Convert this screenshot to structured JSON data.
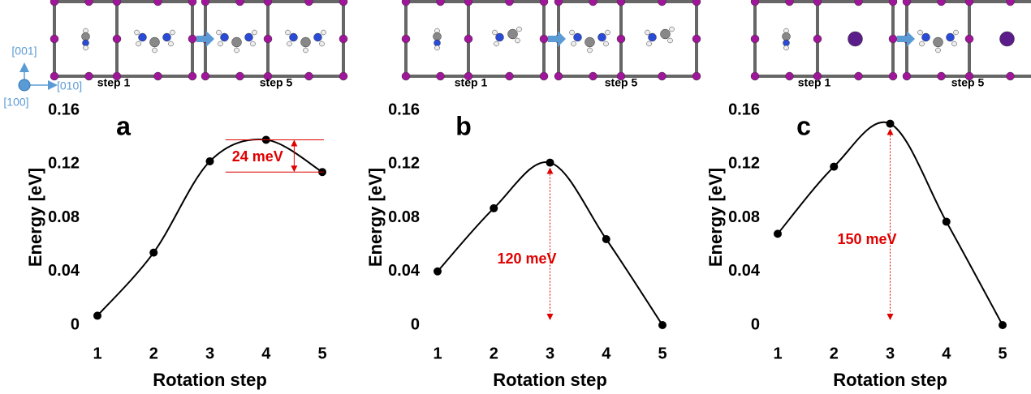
{
  "axes_key": {
    "up": "[001]",
    "right": "[010]",
    "out": "[100]"
  },
  "chart_data": [
    {
      "type": "line",
      "panel_label": "a",
      "insets": [
        "step 1",
        "step 5"
      ],
      "xlabel": "Rotation step",
      "ylabel": "Energy [eV]",
      "x": [
        1,
        2,
        3,
        4,
        5
      ],
      "values": [
        0.007,
        0.054,
        0.122,
        0.138,
        0.114
      ],
      "color": "#000000",
      "xlim": [
        1,
        5
      ],
      "xticks": [
        1,
        2,
        3,
        4,
        5
      ],
      "ylim": [
        0,
        0.16
      ],
      "yticks": [
        0,
        0.04,
        0.08,
        0.12,
        0.16
      ],
      "annotation": "24 meV"
    },
    {
      "type": "line",
      "panel_label": "b",
      "insets": [
        "step 1",
        "step 5"
      ],
      "xlabel": "Rotation step",
      "ylabel": "Energy [eV]",
      "x": [
        1,
        2,
        3,
        4,
        5
      ],
      "values": [
        0.04,
        0.087,
        0.121,
        0.064,
        0
      ],
      "color": "#000000",
      "xlim": [
        1,
        5
      ],
      "xticks": [
        1,
        2,
        3,
        4,
        5
      ],
      "ylim": [
        0,
        0.16
      ],
      "yticks": [
        0,
        0.04,
        0.08,
        0.12,
        0.16
      ],
      "annotation": "120 meV"
    },
    {
      "type": "line",
      "panel_label": "c",
      "insets": [
        "step 1",
        "step 5"
      ],
      "xlabel": "Rotation step",
      "ylabel": "Energy [eV]",
      "x": [
        1,
        2,
        3,
        4,
        5
      ],
      "values": [
        0.068,
        0.118,
        0.15,
        0.077,
        0
      ],
      "color": "#000000",
      "xlim": [
        1,
        5
      ],
      "xticks": [
        1,
        2,
        3,
        4,
        5
      ],
      "ylim": [
        0,
        0.16
      ],
      "yticks": [
        0,
        0.04,
        0.08,
        0.12,
        0.16
      ],
      "annotation": "150 meV"
    }
  ]
}
